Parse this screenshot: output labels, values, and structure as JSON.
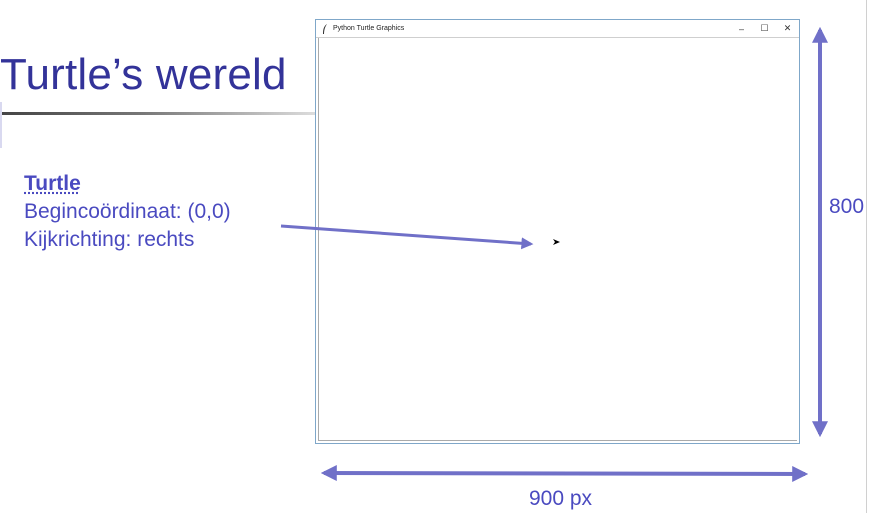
{
  "slide": {
    "title": "Turtle’s wereld"
  },
  "info": {
    "heading": "Turtle",
    "lines": [
      "Begincoördinaat: (0,0)",
      "Kijkrichting: rechts"
    ]
  },
  "window": {
    "title": "Python Turtle Graphics",
    "controls": {
      "minimize": "–",
      "maximize": "☐",
      "close": "✕"
    }
  },
  "dimensions": {
    "height_label": "800",
    "width_label": "900 px"
  },
  "colors": {
    "title": "#333399",
    "text": "#4a4ac0",
    "arrow": "#7070c8",
    "window_border": "#7fa7c9"
  },
  "icons": {
    "app": "python-feather-icon",
    "turtle": "turtle-arrow-cursor-icon"
  }
}
